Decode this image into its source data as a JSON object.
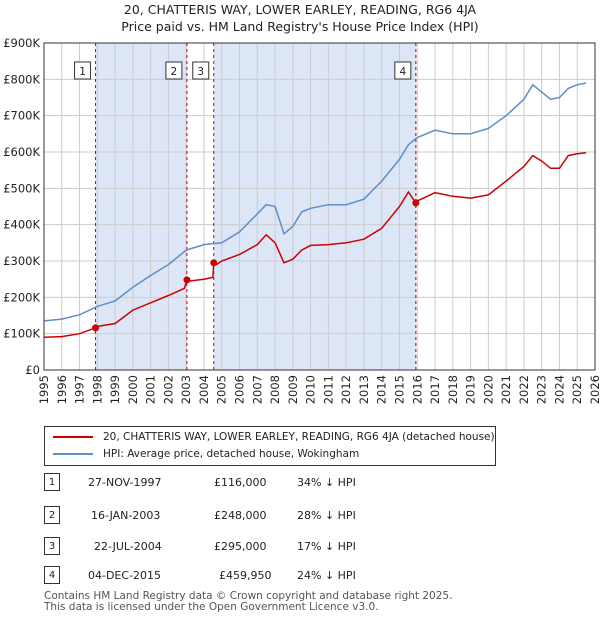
{
  "chart_data": {
    "type": "line",
    "title": "20, CHATTERIS WAY, LOWER EARLEY, READING, RG6 4JA",
    "subtitle": "Price paid vs. HM Land Registry's House Price Index (HPI)",
    "xlim": [
      1995,
      2026
    ],
    "ylim": [
      0,
      900000
    ],
    "x_ticks": [
      1995,
      1996,
      1997,
      1998,
      1999,
      2000,
      2001,
      2002,
      2003,
      2004,
      2005,
      2006,
      2007,
      2008,
      2009,
      2010,
      2011,
      2012,
      2013,
      2014,
      2015,
      2016,
      2017,
      2018,
      2019,
      2020,
      2021,
      2022,
      2023,
      2024,
      2025,
      2026
    ],
    "y_ticks": [
      {
        "value": 0,
        "label": "£0"
      },
      {
        "value": 100000,
        "label": "£100K"
      },
      {
        "value": 200000,
        "label": "£200K"
      },
      {
        "value": 300000,
        "label": "£300K"
      },
      {
        "value": 400000,
        "label": "£400K"
      },
      {
        "value": 500000,
        "label": "£500K"
      },
      {
        "value": 600000,
        "label": "£600K"
      },
      {
        "value": 700000,
        "label": "£700K"
      },
      {
        "value": 800000,
        "label": "£800K"
      },
      {
        "value": 900000,
        "label": "£900K"
      }
    ],
    "shaded_spans": [
      [
        1997.9,
        2003.04
      ],
      [
        2004.55,
        2015.92
      ]
    ],
    "markers": [
      {
        "label": "1",
        "x": 1997.9,
        "y": 116000
      },
      {
        "label": "2",
        "x": 2003.04,
        "y": 248000
      },
      {
        "label": "3",
        "x": 2004.55,
        "y": 295000
      },
      {
        "label": "4",
        "x": 2015.92,
        "y": 459950
      }
    ],
    "series": [
      {
        "name": "20, CHATTERIS WAY, LOWER EARLEY, READING, RG6 4JA (detached house)",
        "color": "#cc0000",
        "x": [
          1995,
          1996,
          1997,
          1997.9,
          1998,
          1999,
          2000,
          2001,
          2002,
          2002.9,
          2003.04,
          2003.2,
          2004,
          2004.5,
          2004.55,
          2004.7,
          2005,
          2006,
          2007,
          2007.5,
          2008,
          2008.5,
          2009,
          2009.5,
          2010,
          2011,
          2012,
          2013,
          2014,
          2015,
          2015.5,
          2015.92,
          2016,
          2017,
          2018,
          2019,
          2020,
          2021,
          2022,
          2022.5,
          2023,
          2023.5,
          2024,
          2024.5,
          2025,
          2025.5
        ],
        "values": [
          90000,
          92000,
          100000,
          116000,
          120000,
          128000,
          165000,
          185000,
          205000,
          225000,
          248000,
          245000,
          250000,
          255000,
          295000,
          290000,
          300000,
          318000,
          345000,
          372000,
          350000,
          295000,
          305000,
          330000,
          343000,
          345000,
          350000,
          360000,
          390000,
          450000,
          490000,
          459950,
          465000,
          488000,
          478000,
          473000,
          482000,
          520000,
          560000,
          590000,
          575000,
          555000,
          555000,
          590000,
          595000,
          598000
        ]
      },
      {
        "name": "HPI: Average price, detached house, Wokingham",
        "color": "#5b8fc7",
        "x": [
          1995,
          1996,
          1997,
          1998,
          1999,
          2000,
          2001,
          2002,
          2003,
          2004,
          2005,
          2006,
          2007,
          2007.5,
          2008,
          2008.5,
          2009,
          2009.5,
          2010,
          2011,
          2012,
          2013,
          2014,
          2015,
          2015.5,
          2016,
          2017,
          2018,
          2019,
          2020,
          2021,
          2022,
          2022.5,
          2023,
          2023.5,
          2024,
          2024.5,
          2025,
          2025.5
        ],
        "values": [
          135000,
          140000,
          152000,
          175000,
          190000,
          228000,
          260000,
          290000,
          330000,
          345000,
          350000,
          380000,
          430000,
          455000,
          450000,
          375000,
          395000,
          435000,
          445000,
          455000,
          455000,
          470000,
          520000,
          580000,
          620000,
          640000,
          660000,
          650000,
          650000,
          665000,
          700000,
          745000,
          785000,
          765000,
          745000,
          750000,
          775000,
          785000,
          790000
        ]
      }
    ]
  },
  "legend": {
    "property": "20, CHATTERIS WAY, LOWER EARLEY, READING, RG6 4JA (detached house)",
    "hpi": "HPI: Average price, detached house, Wokingham"
  },
  "transactions": [
    {
      "num": "1",
      "date": "27-NOV-1997",
      "price": "£116,000",
      "hpi": "34% ↓ HPI"
    },
    {
      "num": "2",
      "date": "16-JAN-2003",
      "price": "£248,000",
      "hpi": "28% ↓ HPI"
    },
    {
      "num": "3",
      "date": "22-JUL-2004",
      "price": "£295,000",
      "hpi": "17% ↓ HPI"
    },
    {
      "num": "4",
      "date": "04-DEC-2015",
      "price": "£459,950",
      "hpi": "24% ↓ HPI"
    }
  ],
  "footer": {
    "line1": "Contains HM Land Registry data © Crown copyright and database right 2025.",
    "line2": "This data is licensed under the Open Government Licence v3.0."
  },
  "colors": {
    "red": "#cc0000",
    "blue": "#5b8fc7",
    "shade": "#dde6f6",
    "grid": "#cccccc"
  }
}
